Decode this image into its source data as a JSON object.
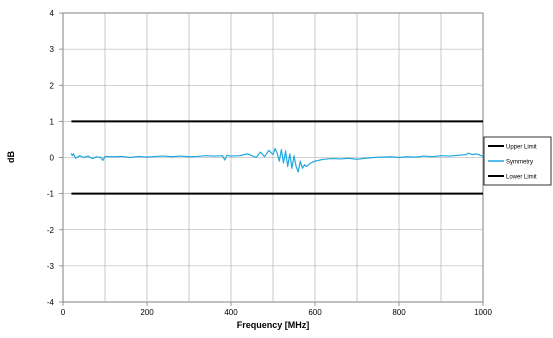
{
  "chart_data": {
    "type": "line",
    "title": "",
    "xlabel": "Frequency [MHz]",
    "ylabel": "dB",
    "xlim": [
      0,
      1000
    ],
    "ylim": [
      -4,
      4
    ],
    "x_ticks": [
      0,
      200,
      400,
      600,
      800,
      1000
    ],
    "y_ticks": [
      -4,
      -3,
      -2,
      -1,
      0,
      1,
      2,
      3,
      4
    ],
    "x_tick_labels": [
      "0",
      "200",
      "400",
      "600",
      "800",
      "1000"
    ],
    "y_tick_labels": [
      "-4",
      "-3",
      "-2",
      "-1",
      "0",
      "1",
      "2",
      "3",
      "4"
    ],
    "grid": true,
    "legend_position": "right",
    "series": [
      {
        "name": "Upper Limit",
        "color": "#000000",
        "x": [
          20,
          1000
        ],
        "y": [
          1,
          1
        ]
      },
      {
        "name": "Symmetry",
        "color": "#1EA7E1",
        "x": [
          20,
          22,
          25,
          30,
          40,
          50,
          60,
          70,
          80,
          90,
          95,
          100,
          120,
          140,
          160,
          180,
          200,
          220,
          240,
          260,
          280,
          300,
          320,
          340,
          360,
          380,
          385,
          390,
          400,
          420,
          440,
          450,
          460,
          470,
          480,
          490,
          500,
          505,
          510,
          515,
          520,
          525,
          530,
          535,
          540,
          545,
          550,
          555,
          560,
          565,
          570,
          575,
          580,
          590,
          600,
          620,
          640,
          660,
          680,
          700,
          720,
          740,
          760,
          780,
          800,
          820,
          840,
          860,
          880,
          900,
          920,
          940,
          960,
          965,
          975,
          985,
          1000
        ],
        "y": [
          0.12,
          0.05,
          0.1,
          -0.02,
          0.05,
          0.0,
          0.04,
          -0.03,
          0.02,
          0.0,
          -0.08,
          0.03,
          0.02,
          0.03,
          0.0,
          0.03,
          0.01,
          0.03,
          0.04,
          0.02,
          0.04,
          0.02,
          0.03,
          0.05,
          0.04,
          0.05,
          -0.07,
          0.06,
          0.04,
          0.05,
          0.1,
          0.05,
          0.0,
          0.15,
          0.02,
          0.2,
          0.08,
          0.25,
          0.12,
          -0.1,
          0.22,
          -0.15,
          0.18,
          -0.25,
          0.1,
          -0.3,
          0.05,
          -0.25,
          -0.4,
          -0.1,
          -0.3,
          -0.2,
          -0.25,
          -0.15,
          -0.1,
          -0.05,
          -0.03,
          -0.04,
          -0.02,
          -0.05,
          -0.02,
          0.0,
          0.01,
          0.02,
          0.0,
          0.02,
          0.01,
          0.04,
          0.02,
          0.05,
          0.04,
          0.06,
          0.08,
          0.12,
          0.08,
          0.1,
          0.03
        ]
      },
      {
        "name": "Lower Limit",
        "color": "#000000",
        "x": [
          20,
          1000
        ],
        "y": [
          -1,
          -1
        ]
      }
    ]
  }
}
